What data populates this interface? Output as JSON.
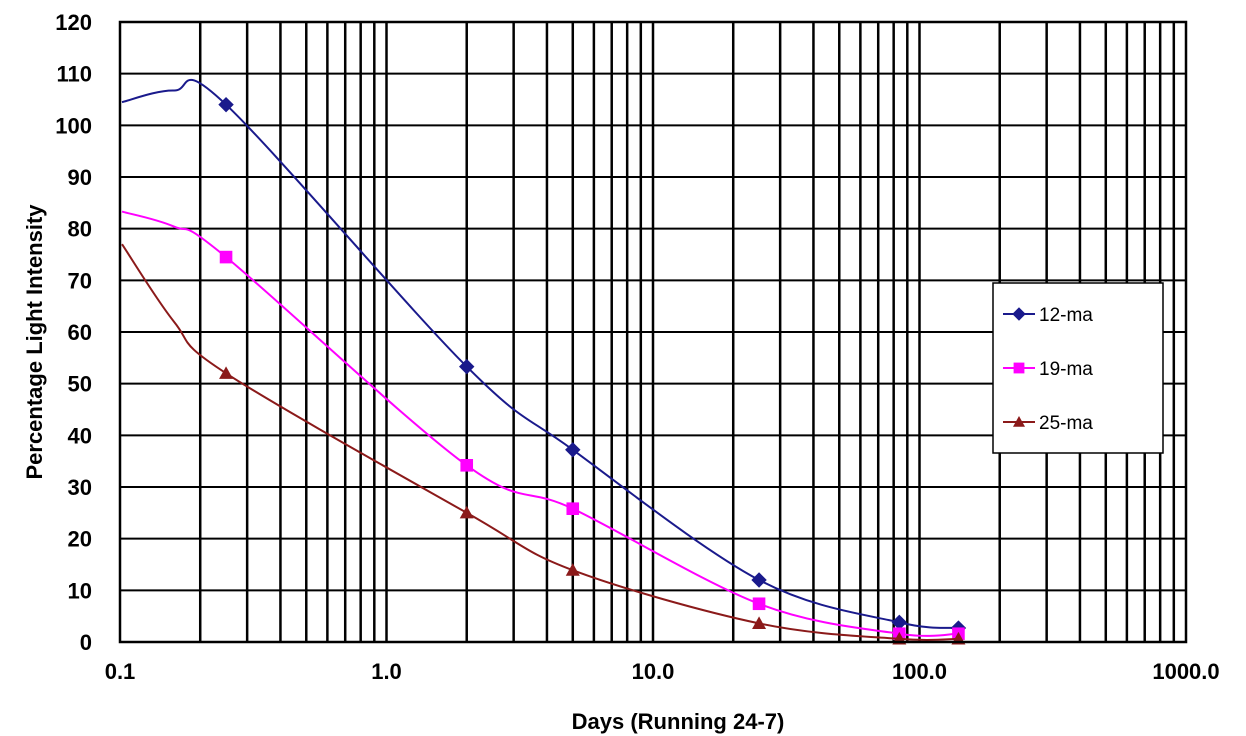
{
  "chart_data": {
    "type": "line",
    "title": "",
    "xlabel": "Days (Running 24-7)",
    "ylabel": "Percentage Light Intensity",
    "x_scale": "log",
    "xlim": [
      0.1,
      1000
    ],
    "ylim": [
      0,
      120
    ],
    "x_tick_labels": [
      "0.1",
      "1.0",
      "10.0",
      "100.0",
      "1000.0"
    ],
    "y_tick_labels": [
      "0",
      "10",
      "20",
      "30",
      "40",
      "50",
      "60",
      "70",
      "80",
      "90",
      "100",
      "110",
      "120"
    ],
    "grid": {
      "horizontal": "every 10",
      "vertical": "log minor (1-9 per decade)"
    },
    "legend_position": "right",
    "series": [
      {
        "name": "12-ma",
        "color": "#1a1a8c",
        "marker": "diamond",
        "points": [
          [
            0.25,
            104
          ],
          [
            2,
            53.3
          ],
          [
            5,
            37.2
          ],
          [
            25,
            12
          ],
          [
            84,
            3.8
          ],
          [
            140,
            2.7
          ]
        ],
        "curve_start": 104.5
      },
      {
        "name": "19-ma",
        "color": "#ff00ff",
        "marker": "square",
        "points": [
          [
            0.25,
            74.5
          ],
          [
            2,
            34.2
          ],
          [
            5,
            25.8
          ],
          [
            25,
            7.4
          ],
          [
            84,
            1.6
          ],
          [
            140,
            1.6
          ]
        ],
        "curve_start": 83.3
      },
      {
        "name": "25-ma",
        "color": "#8b1a1a",
        "marker": "triangle",
        "points": [
          [
            0.25,
            52
          ],
          [
            2,
            25
          ],
          [
            5,
            13.9
          ],
          [
            25,
            3.6
          ],
          [
            84,
            0.6
          ],
          [
            140,
            0.6
          ]
        ],
        "curve_start": 77
      }
    ]
  }
}
